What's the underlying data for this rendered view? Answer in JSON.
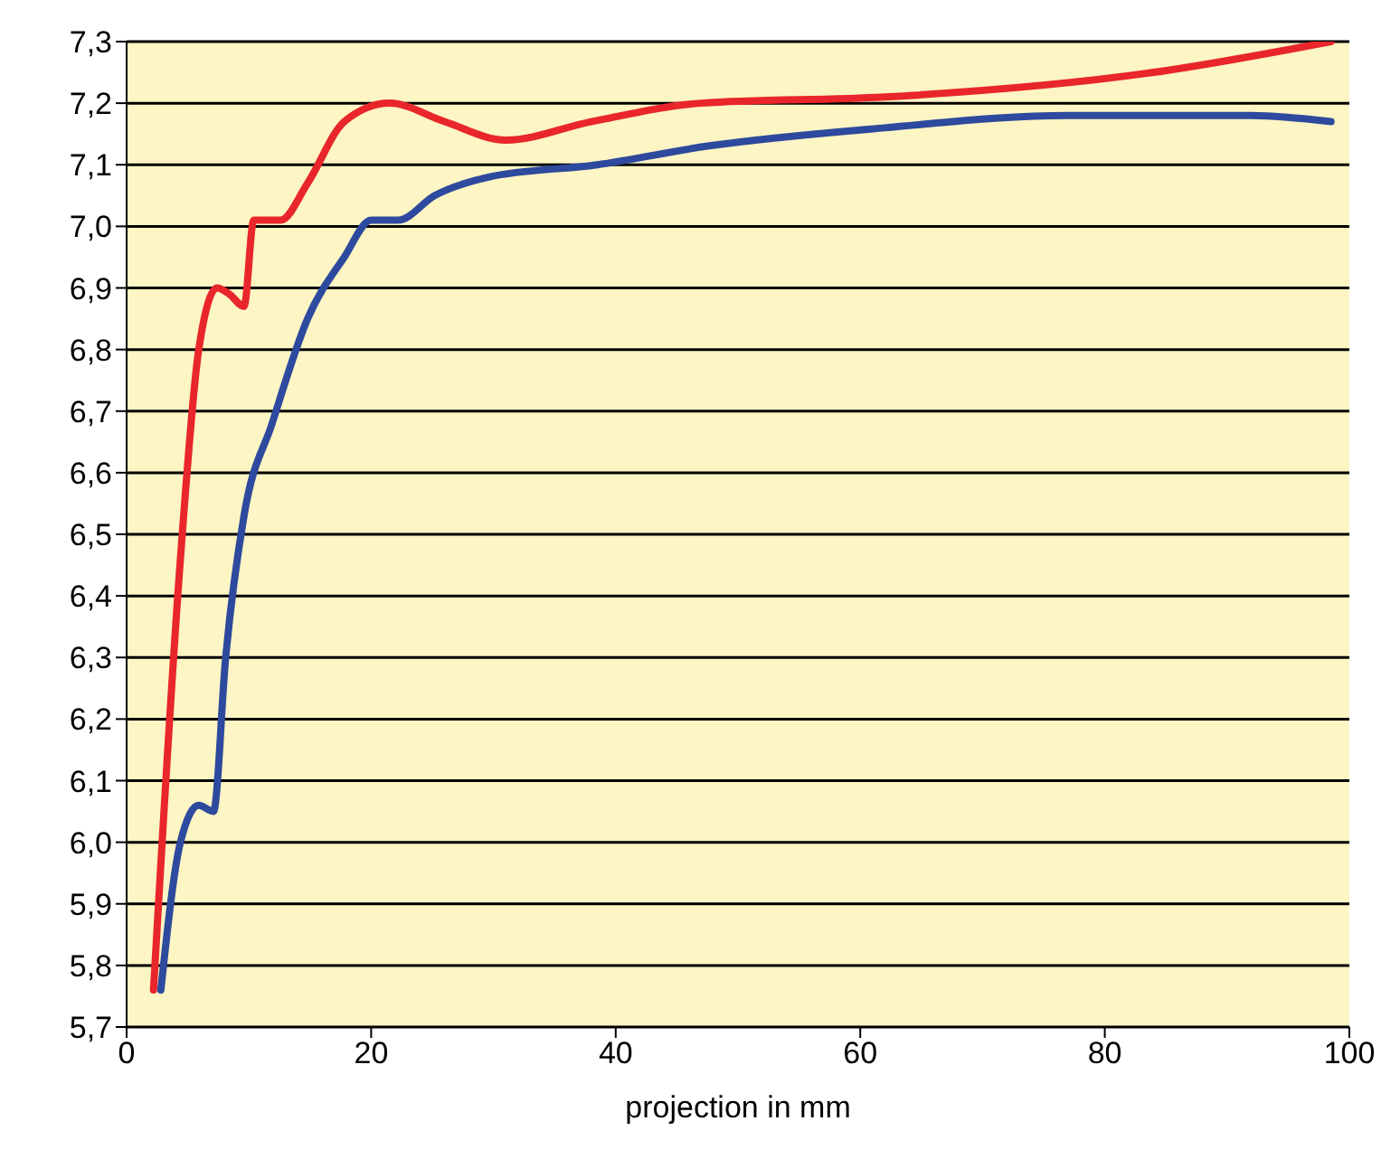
{
  "chart_data": {
    "type": "line",
    "xlabel": "projection in mm",
    "xlim": [
      0,
      100
    ],
    "xticks": [
      0,
      20,
      40,
      60,
      80,
      100
    ],
    "ylim": [
      5.7,
      7.3
    ],
    "yticks": [
      {
        "value": 5.7,
        "label": "5,7"
      },
      {
        "value": 5.8,
        "label": "5,8"
      },
      {
        "value": 5.9,
        "label": "5,9"
      },
      {
        "value": 6.0,
        "label": "6,0"
      },
      {
        "value": 6.1,
        "label": "6,1"
      },
      {
        "value": 6.2,
        "label": "6,2"
      },
      {
        "value": 6.3,
        "label": "6,3"
      },
      {
        "value": 6.4,
        "label": "6,4"
      },
      {
        "value": 6.5,
        "label": "6,5"
      },
      {
        "value": 6.6,
        "label": "6,6"
      },
      {
        "value": 6.7,
        "label": "6,7"
      },
      {
        "value": 6.8,
        "label": "6,8"
      },
      {
        "value": 6.9,
        "label": "6,9"
      },
      {
        "value": 7.0,
        "label": "7,0"
      },
      {
        "value": 7.1,
        "label": "7,1"
      },
      {
        "value": 7.2,
        "label": "7,2"
      },
      {
        "value": 7.3,
        "label": "7,3"
      }
    ],
    "grid": "y",
    "marker": "none",
    "line_style": "solid",
    "series": [
      {
        "color": "#2e4a9e",
        "x": [
          2.8,
          4.4,
          5.9,
          7.1,
          8.1,
          9.6,
          11.9,
          14.8,
          17.8,
          20,
          22.2,
          25.2,
          29.6,
          38.5,
          47.4,
          62,
          77,
          92,
          98.5
        ],
        "values": [
          5.76,
          6.0,
          6.06,
          6.05,
          6.3,
          6.53,
          6.68,
          6.85,
          6.95,
          7.01,
          7.01,
          7.05,
          7.08,
          7.1,
          7.13,
          7.16,
          7.18,
          7.18,
          7.17
        ]
      },
      {
        "color": "#e8262b",
        "x": [
          2.2,
          4.4,
          5.9,
          7.4,
          8.4,
          9.6,
          10.4,
          12.6,
          14.8,
          17.8,
          21.5,
          26,
          31,
          38,
          47,
          62,
          84,
          98.5
        ],
        "values": [
          5.76,
          6.46,
          6.8,
          6.9,
          6.89,
          6.87,
          7.01,
          7.01,
          7.07,
          7.17,
          7.2,
          7.17,
          7.14,
          7.17,
          7.2,
          7.21,
          7.25,
          7.3
        ]
      }
    ]
  }
}
